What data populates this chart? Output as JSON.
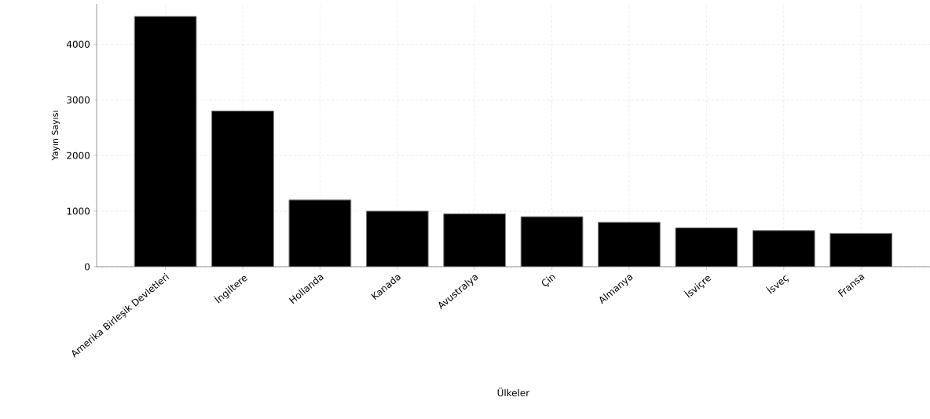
{
  "chart_data": {
    "type": "bar",
    "xlabel": "Ülkeler",
    "ylabel": "Yayın Sayısı",
    "categories": [
      "Amerika Birleşik Devletleri",
      "İngiltere",
      "Hollanda",
      "Kanada",
      "Avustralya",
      "Çin",
      "Almanya",
      "İsviçre",
      "İsveç",
      "Fransa"
    ],
    "values": [
      4500,
      2800,
      1200,
      1000,
      950,
      900,
      800,
      700,
      650,
      600
    ],
    "color": "#000000",
    "ylim": [
      0,
      4725
    ],
    "yticks": [
      0,
      1000,
      2000,
      3000,
      4000
    ],
    "grid": true
  }
}
